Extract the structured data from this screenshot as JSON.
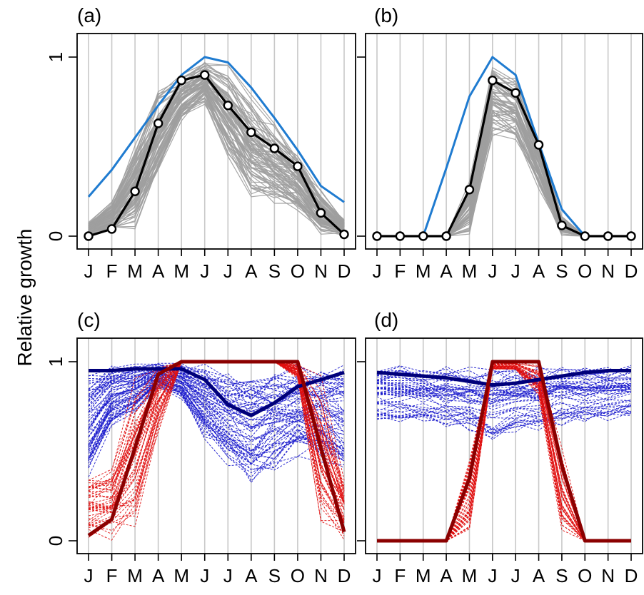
{
  "ylabel": "Relative growth",
  "chart_data": [
    {
      "type": "line",
      "panel_label": "(a)",
      "categories": [
        "J",
        "F",
        "M",
        "A",
        "M",
        "J",
        "J",
        "A",
        "S",
        "O",
        "N",
        "D"
      ],
      "ylim": [
        0,
        1.1
      ],
      "yticks": [
        0,
        1
      ],
      "ytick_labels": [
        "0",
        "1"
      ],
      "grid": "vertical",
      "series": [
        {
          "role": "envelope",
          "color": "#1f7bd0",
          "values": [
            0.22,
            0.37,
            0.55,
            0.73,
            0.9,
            1.0,
            0.97,
            0.83,
            0.66,
            0.48,
            0.28,
            0.19
          ]
        },
        {
          "role": "mean",
          "color": "#000000",
          "marker": "circle",
          "values": [
            0.0,
            0.04,
            0.25,
            0.63,
            0.87,
            0.9,
            0.73,
            0.58,
            0.49,
            0.39,
            0.13,
            0.01
          ]
        }
      ],
      "ensemble": {
        "color": "#9e9e9e",
        "style": "solid",
        "count": 80,
        "low": [
          0.0,
          0.0,
          0.0,
          0.3,
          0.62,
          0.72,
          0.4,
          0.18,
          0.14,
          0.12,
          0.0,
          0.0
        ],
        "high": [
          0.08,
          0.2,
          0.55,
          0.82,
          0.92,
          0.99,
          0.96,
          0.8,
          0.64,
          0.47,
          0.26,
          0.1
        ]
      }
    },
    {
      "type": "line",
      "panel_label": "(b)",
      "categories": [
        "J",
        "F",
        "M",
        "A",
        "M",
        "J",
        "J",
        "A",
        "S",
        "O",
        "N",
        "D"
      ],
      "ylim": [
        0,
        1.1
      ],
      "yticks": [
        0,
        1
      ],
      "ytick_labels": [
        "",
        ""
      ],
      "grid": "vertical",
      "series": [
        {
          "role": "envelope",
          "color": "#1f7bd0",
          "values": [
            0.0,
            0.0,
            0.0,
            0.38,
            0.78,
            1.0,
            0.9,
            0.52,
            0.15,
            0.0,
            0.0,
            0.0
          ]
        },
        {
          "role": "mean",
          "color": "#000000",
          "marker": "circle",
          "values": [
            0.0,
            0.0,
            0.0,
            0.0,
            0.26,
            0.87,
            0.8,
            0.51,
            0.06,
            0.0,
            0.0,
            0.0
          ]
        }
      ],
      "ensemble": {
        "color": "#9e9e9e",
        "style": "solid",
        "count": 60,
        "low": [
          0.0,
          0.0,
          0.0,
          0.0,
          0.0,
          0.55,
          0.52,
          0.25,
          0.0,
          0.0,
          0.0,
          0.0
        ],
        "high": [
          0.0,
          0.0,
          0.0,
          0.0,
          0.32,
          0.98,
          0.9,
          0.55,
          0.12,
          0.0,
          0.0,
          0.0
        ]
      }
    },
    {
      "type": "line",
      "panel_label": "(c)",
      "categories": [
        "J",
        "F",
        "M",
        "A",
        "M",
        "J",
        "J",
        "A",
        "S",
        "O",
        "N",
        "D"
      ],
      "ylim": [
        0,
        1.1
      ],
      "yticks": [
        0,
        1
      ],
      "ytick_labels": [
        "0",
        "1"
      ],
      "grid": "vertical",
      "series": [
        {
          "role": "mean-dry",
          "color": "#00007a",
          "values": [
            0.95,
            0.95,
            0.96,
            0.96,
            0.96,
            0.9,
            0.76,
            0.7,
            0.77,
            0.86,
            0.9,
            0.94
          ]
        },
        {
          "role": "mean-cold",
          "color": "#8b0000",
          "values": [
            0.03,
            0.12,
            0.52,
            0.93,
            1.0,
            1.0,
            1.0,
            1.0,
            1.0,
            1.0,
            0.52,
            0.05
          ]
        }
      ],
      "ensembles": [
        {
          "color": "#1a1acc",
          "style": "dashed",
          "count": 70,
          "low": [
            0.3,
            0.62,
            0.7,
            0.85,
            0.78,
            0.55,
            0.4,
            0.26,
            0.38,
            0.45,
            0.42,
            0.35
          ],
          "high": [
            1.0,
            1.0,
            1.0,
            1.0,
            1.0,
            1.0,
            1.0,
            1.0,
            1.0,
            1.0,
            1.0,
            1.0
          ]
        },
        {
          "color": "#e01010",
          "style": "dashed",
          "count": 45,
          "low": [
            0.0,
            0.0,
            0.0,
            0.6,
            1.0,
            1.0,
            1.0,
            1.0,
            1.0,
            0.9,
            0.0,
            0.0
          ],
          "high": [
            0.38,
            0.45,
            0.95,
            1.0,
            1.0,
            1.0,
            1.0,
            1.0,
            1.0,
            1.0,
            0.95,
            0.35
          ]
        }
      ]
    },
    {
      "type": "line",
      "panel_label": "(d)",
      "categories": [
        "J",
        "F",
        "M",
        "A",
        "M",
        "J",
        "J",
        "A",
        "S",
        "O",
        "N",
        "D"
      ],
      "ylim": [
        0,
        1.1
      ],
      "yticks": [
        0,
        1
      ],
      "ytick_labels": [
        "",
        ""
      ],
      "grid": "vertical",
      "series": [
        {
          "role": "mean-dry",
          "color": "#00007a",
          "values": [
            0.94,
            0.93,
            0.92,
            0.91,
            0.89,
            0.87,
            0.88,
            0.9,
            0.92,
            0.94,
            0.95,
            0.95
          ]
        },
        {
          "role": "mean-cold",
          "color": "#8b0000",
          "values": [
            0.0,
            0.0,
            0.0,
            0.0,
            0.35,
            1.0,
            1.0,
            1.0,
            0.42,
            0.0,
            0.0,
            0.0
          ]
        }
      ],
      "ensembles": [
        {
          "color": "#1a1acc",
          "style": "dashed",
          "count": 50,
          "low": [
            0.65,
            0.65,
            0.62,
            0.6,
            0.57,
            0.55,
            0.58,
            0.6,
            0.62,
            0.64,
            0.66,
            0.67
          ],
          "high": [
            1.0,
            1.0,
            1.0,
            1.0,
            1.0,
            1.0,
            1.0,
            1.0,
            1.0,
            1.0,
            1.0,
            1.0
          ]
        },
        {
          "color": "#e01010",
          "style": "dashed",
          "count": 40,
          "low": [
            0.0,
            0.0,
            0.0,
            0.0,
            0.0,
            0.95,
            0.95,
            0.8,
            0.0,
            0.0,
            0.0,
            0.0
          ],
          "high": [
            0.0,
            0.0,
            0.0,
            0.0,
            0.5,
            1.0,
            1.0,
            1.0,
            0.55,
            0.0,
            0.0,
            0.0
          ]
        }
      ]
    }
  ]
}
